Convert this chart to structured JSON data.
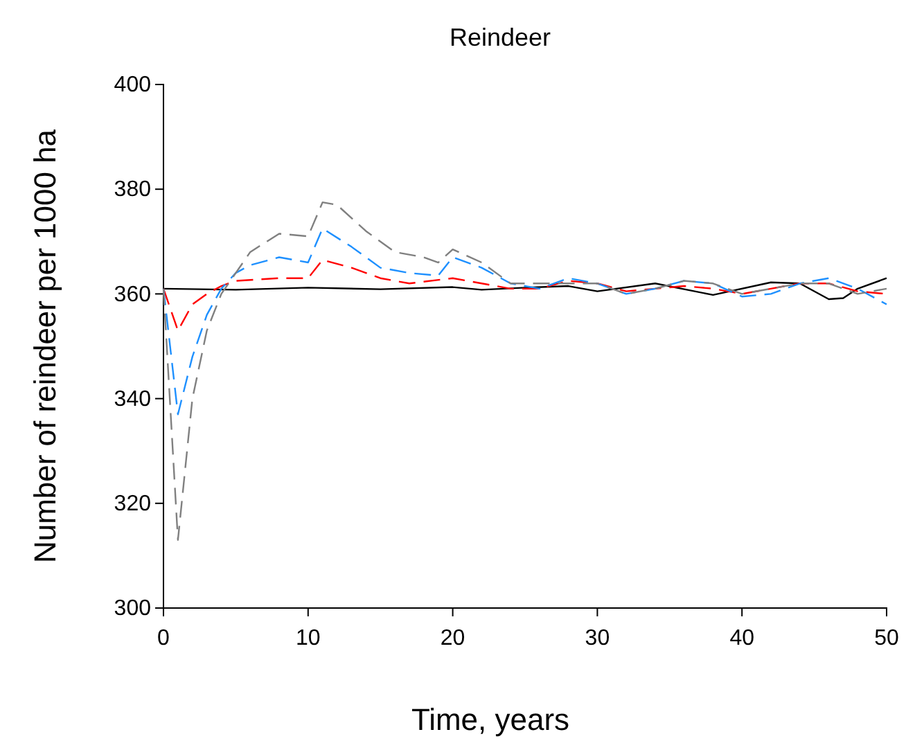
{
  "chart_data": {
    "type": "line",
    "title": "Reindeer",
    "xlabel": "Time, years",
    "ylabel": "Number of reindeer per 1000 ha",
    "xlim": [
      0,
      50
    ],
    "xticks": [
      0,
      10,
      20,
      30,
      40,
      50
    ],
    "ylim": [
      300,
      400
    ],
    "yticks": [
      300,
      320,
      340,
      360,
      380,
      400
    ],
    "grid": false,
    "marker": "none",
    "series": [
      {
        "color": "#000000",
        "line_style": "solid",
        "x": [
          0,
          5,
          10,
          15,
          20,
          22,
          25,
          28,
          30,
          34,
          38,
          42,
          44,
          46,
          47,
          48,
          50
        ],
        "values": [
          361,
          360.8,
          361.2,
          360.9,
          361.3,
          360.8,
          361.2,
          361.5,
          360.5,
          362,
          359.8,
          362.2,
          362,
          359,
          359.2,
          361,
          363
        ]
      },
      {
        "color": "#ff0000",
        "line_style": "dashed",
        "x": [
          0,
          1,
          2,
          3,
          4,
          5,
          8,
          10,
          11,
          13,
          15,
          17,
          20,
          22,
          24,
          26,
          28,
          30,
          32,
          34,
          36,
          38,
          40,
          42,
          44,
          46,
          48,
          50
        ],
        "values": [
          361,
          353,
          358,
          360,
          361.5,
          362.5,
          363,
          363,
          366.5,
          365,
          363,
          362,
          363,
          362,
          361,
          361,
          362.5,
          362,
          360.5,
          361,
          361.5,
          361,
          360,
          361,
          362,
          362,
          360.5,
          360
        ]
      },
      {
        "color": "#1e90ff",
        "line_style": "dashed",
        "x": [
          0,
          1,
          2,
          3,
          4,
          5,
          6,
          8,
          10,
          11,
          13,
          15,
          17,
          19,
          20,
          22,
          24,
          26,
          28,
          30,
          32,
          34,
          36,
          38,
          40,
          42,
          44,
          46,
          48,
          50
        ],
        "values": [
          361,
          337,
          348,
          356,
          361,
          364,
          365.5,
          367,
          366,
          372.5,
          369,
          365,
          364,
          363.5,
          367,
          365,
          362,
          361,
          363,
          362,
          360,
          361,
          362.5,
          362,
          359.5,
          360,
          362,
          363,
          361,
          358
        ]
      },
      {
        "color": "#808080",
        "line_style": "dashed",
        "x": [
          0,
          1,
          2,
          3,
          4,
          5,
          6,
          8,
          10,
          11,
          12,
          14,
          16,
          18,
          19,
          20,
          22,
          24,
          26,
          28,
          30,
          32,
          34,
          36,
          38,
          40,
          42,
          44,
          46,
          48,
          50
        ],
        "values": [
          361,
          313,
          340,
          353,
          360,
          364,
          368,
          371.5,
          371,
          377.5,
          377,
          372,
          368,
          367,
          366,
          368.5,
          366,
          362,
          362,
          362,
          362,
          360,
          361,
          362.5,
          362,
          360,
          361,
          362,
          362,
          360,
          361
        ]
      }
    ]
  }
}
